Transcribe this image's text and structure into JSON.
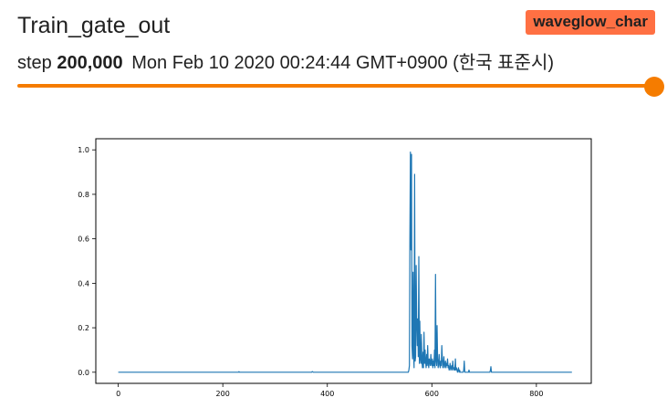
{
  "card": {
    "title": "Train_gate_out",
    "run_label": "waveglow_char",
    "step_prefix": "step",
    "step_value": "200,000",
    "timestamp": "Mon Feb 10 2020 00:24:44 GMT+0900 (한국 표준시)",
    "slider_position": 1.0,
    "colors": {
      "accent": "#f57c00",
      "badge": "#ff7043",
      "line": "#1f77b4"
    }
  },
  "chart_data": {
    "type": "line",
    "title": "",
    "xlabel": "",
    "ylabel": "",
    "xlim": [
      -43,
      905
    ],
    "ylim": [
      -0.05,
      1.05
    ],
    "xticks": [
      0,
      200,
      400,
      600,
      800
    ],
    "xtick_labels": [
      "0",
      "200",
      "400",
      "600",
      "800"
    ],
    "yticks": [
      0.0,
      0.2,
      0.4,
      0.6,
      0.8,
      1.0
    ],
    "ytick_labels": [
      "0.0",
      "0.2",
      "0.4",
      "0.6",
      "0.8",
      "1.0"
    ],
    "grid": false,
    "series": [
      {
        "values_note": "",
        "x": [
          0,
          100,
          200,
          230,
          231,
          232,
          300,
          370,
          371,
          372,
          373,
          500,
          555,
          556,
          557,
          558,
          559,
          560,
          561,
          562,
          563,
          564,
          565,
          566,
          567,
          568,
          569,
          570,
          571,
          572,
          573,
          574,
          575,
          576,
          577,
          578,
          579,
          580,
          581,
          582,
          583,
          584,
          585,
          586,
          587,
          588,
          589,
          590,
          591,
          592,
          593,
          594,
          595,
          596,
          597,
          598,
          599,
          600,
          601,
          602,
          603,
          604,
          605,
          606,
          607,
          608,
          609,
          610,
          611,
          612,
          613,
          614,
          615,
          616,
          617,
          618,
          619,
          620,
          621,
          622,
          623,
          624,
          625,
          626,
          627,
          628,
          629,
          630,
          631,
          632,
          633,
          634,
          635,
          636,
          637,
          638,
          639,
          640,
          641,
          642,
          643,
          644,
          645,
          646,
          647,
          648,
          649,
          650,
          651,
          652,
          653,
          654,
          655,
          660,
          661,
          662,
          663,
          664,
          670,
          671,
          672,
          673,
          674,
          680,
          700,
          710,
          711,
          712,
          713,
          714,
          720,
          740,
          800,
          868
        ],
        "y": [
          0.0,
          0.0,
          0.0,
          0.0,
          0.003,
          0.0,
          0.0,
          0.0,
          0.003,
          0.002,
          0.0,
          0.0,
          0.0,
          0.01,
          0.03,
          0.6,
          0.99,
          0.55,
          0.98,
          0.12,
          0.06,
          0.45,
          0.08,
          0.02,
          0.89,
          0.05,
          0.07,
          0.48,
          0.22,
          0.12,
          0.24,
          0.07,
          0.52,
          0.04,
          0.23,
          0.06,
          0.04,
          0.17,
          0.05,
          0.02,
          0.09,
          0.02,
          0.18,
          0.04,
          0.1,
          0.05,
          0.02,
          0.08,
          0.03,
          0.12,
          0.04,
          0.02,
          0.06,
          0.05,
          0.03,
          0.08,
          0.04,
          0.03,
          0.06,
          0.02,
          0.05,
          0.03,
          0.1,
          0.02,
          0.44,
          0.05,
          0.03,
          0.21,
          0.06,
          0.02,
          0.04,
          0.08,
          0.03,
          0.02,
          0.05,
          0.03,
          0.12,
          0.06,
          0.02,
          0.04,
          0.07,
          0.02,
          0.03,
          0.05,
          0.02,
          0.04,
          0.03,
          0.06,
          0.02,
          0.03,
          0.01,
          0.02,
          0.04,
          0.01,
          0.02,
          0.03,
          0.01,
          0.05,
          0.02,
          0.01,
          0.02,
          0.01,
          0.06,
          0.01,
          0.02,
          0.01,
          0.0,
          0.01,
          0.02,
          0.0,
          0.01,
          0.0,
          0.0,
          0.0,
          0.01,
          0.05,
          0.0,
          0.0,
          0.0,
          0.01,
          0.0,
          0.0,
          0.0,
          0.0,
          0.0,
          0.0,
          0.0,
          0.01,
          0.025,
          0.0,
          0.0,
          0.0,
          0.0,
          0.0
        ]
      }
    ]
  }
}
